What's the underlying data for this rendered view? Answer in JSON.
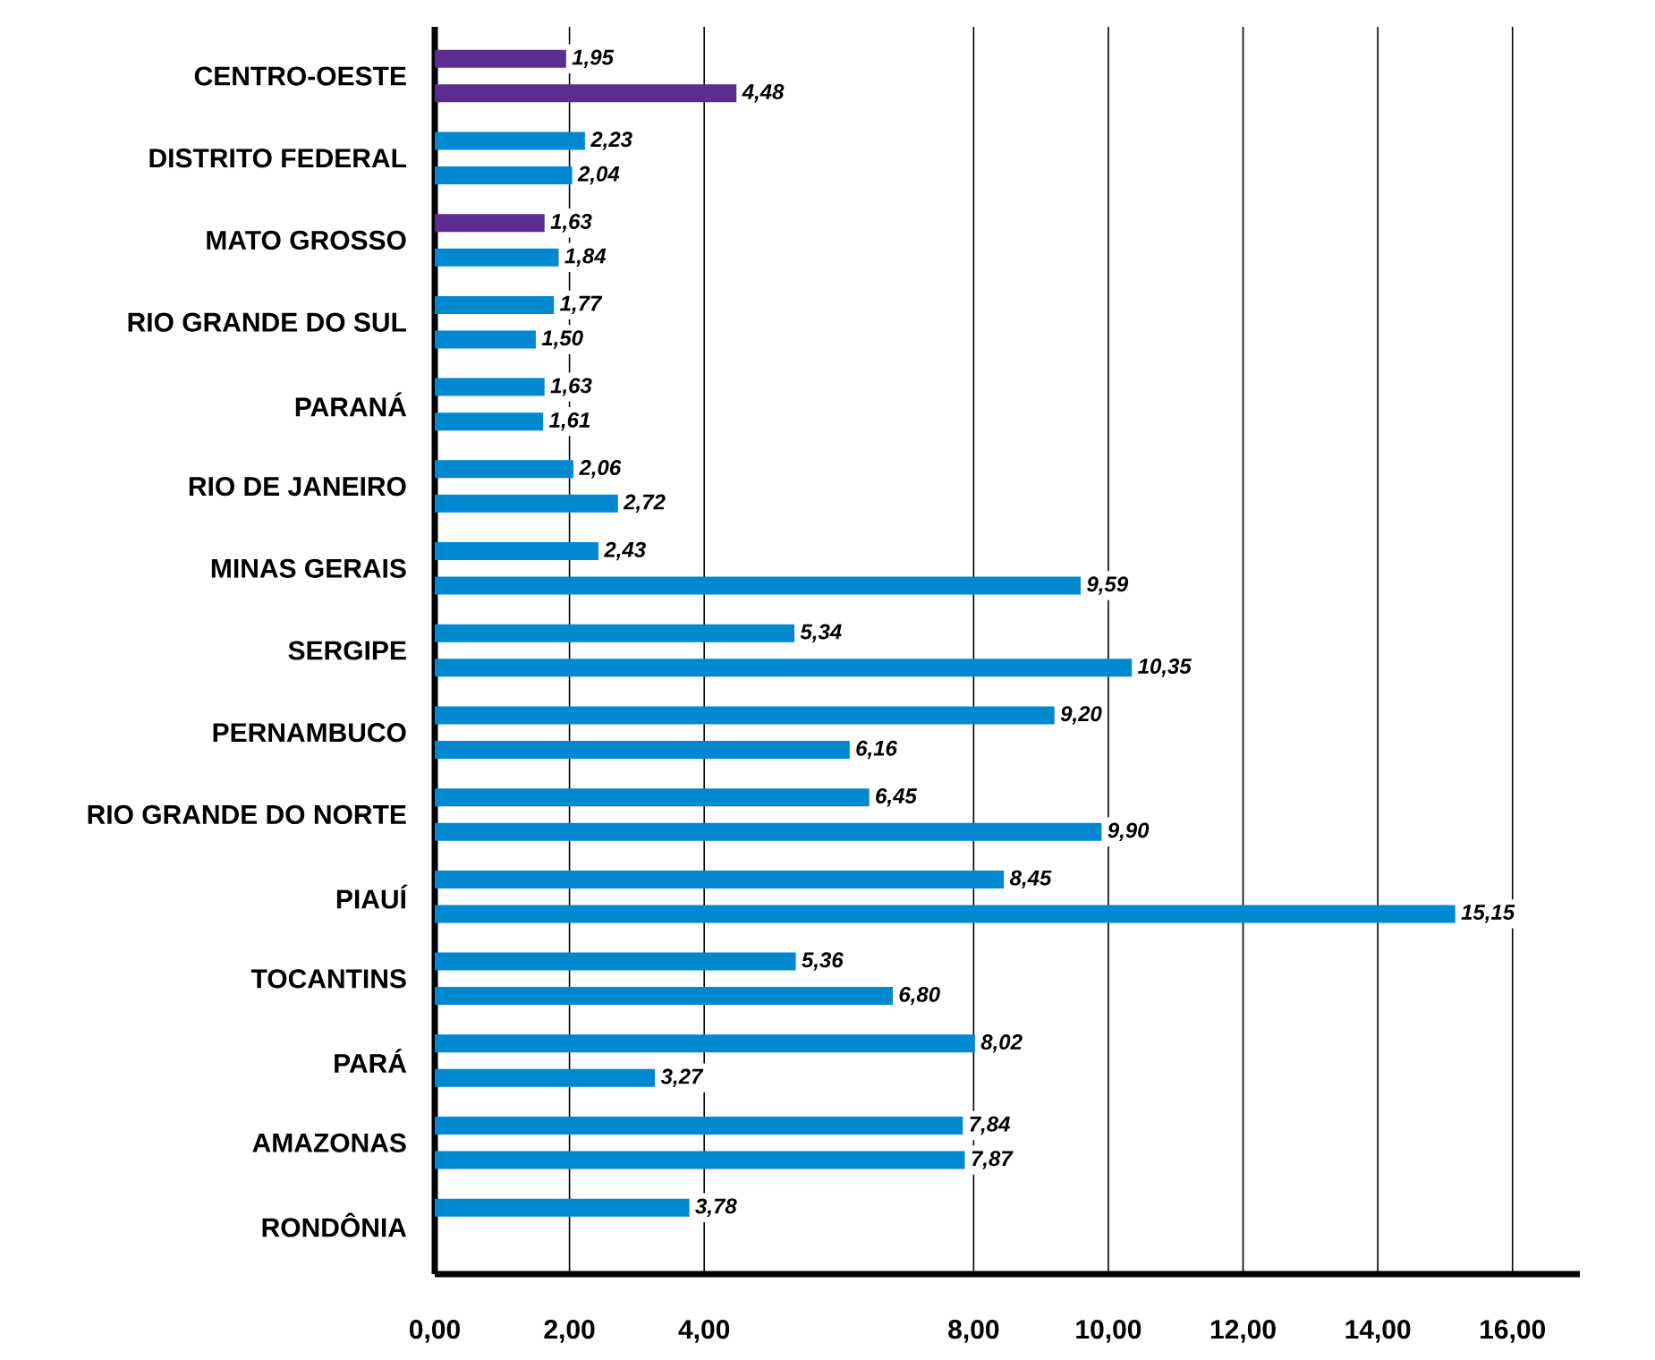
{
  "chart_data": {
    "type": "bar",
    "orientation": "horizontal",
    "grid": "x",
    "categories": [
      "CENTRO-OESTE",
      "DISTRITO FEDERAL",
      "MATO GROSSO",
      "RIO GRANDE DO SUL",
      "PARANÁ",
      "RIO DE JANEIRO",
      "MINAS GERAIS",
      "SERGIPE",
      "PERNAMBUCO",
      "RIO GRANDE DO NORTE",
      "PIAUÍ",
      "TOCANTINS",
      "PARÁ",
      "AMAZONAS",
      "RONDÔNIA"
    ],
    "series": [
      {
        "colors": [
          "#5b2d90",
          "#0088d1",
          "#5b2d90",
          "#0088d1",
          "#0088d1",
          "#0088d1",
          "#0088d1",
          "#0088d1",
          "#0088d1",
          "#0088d1",
          "#0088d1",
          "#0088d1",
          "#0088d1",
          "#0088d1",
          "#0088d1"
        ],
        "values": [
          1.95,
          2.23,
          1.63,
          1.77,
          1.63,
          2.06,
          2.43,
          5.34,
          9.2,
          6.45,
          8.45,
          5.36,
          8.02,
          7.84,
          3.78
        ],
        "value_labels": [
          "1,95",
          "2,23",
          "1,63",
          "1,77",
          "1,63",
          "2,06",
          "2,43",
          "5,34",
          "9,20",
          "6,45",
          "8,45",
          "5,36",
          "8,02",
          "7,84",
          "3,78"
        ]
      },
      {
        "colors": [
          "#5b2d90",
          "#0088d1",
          "#0088d1",
          "#0088d1",
          "#0088d1",
          "#0088d1",
          "#0088d1",
          "#0088d1",
          "#0088d1",
          "#0088d1",
          "#0088d1",
          "#0088d1",
          "#0088d1",
          "#0088d1",
          null
        ],
        "values": [
          4.48,
          2.04,
          1.84,
          1.5,
          1.61,
          2.72,
          9.59,
          10.35,
          6.16,
          9.9,
          15.15,
          6.8,
          3.27,
          7.87,
          null
        ],
        "value_labels": [
          "4,48",
          "2,04",
          "1,84",
          "1,50",
          "1,61",
          "2,72",
          "9,59",
          "10,35",
          "6,16",
          "9,90",
          "15,15",
          "6,80",
          "3,27",
          "7,87",
          null
        ]
      }
    ],
    "xlim": [
      0,
      17
    ],
    "xticks": [
      {
        "value": 0,
        "label": "0,00"
      },
      {
        "value": 2,
        "label": "2,00"
      },
      {
        "value": 4,
        "label": "4,00"
      },
      {
        "value": 8,
        "label": "8,00"
      },
      {
        "value": 10,
        "label": "10,00"
      },
      {
        "value": 12,
        "label": "12,00"
      },
      {
        "value": 14,
        "label": "14,00"
      },
      {
        "value": 16,
        "label": "16,00"
      }
    ]
  }
}
